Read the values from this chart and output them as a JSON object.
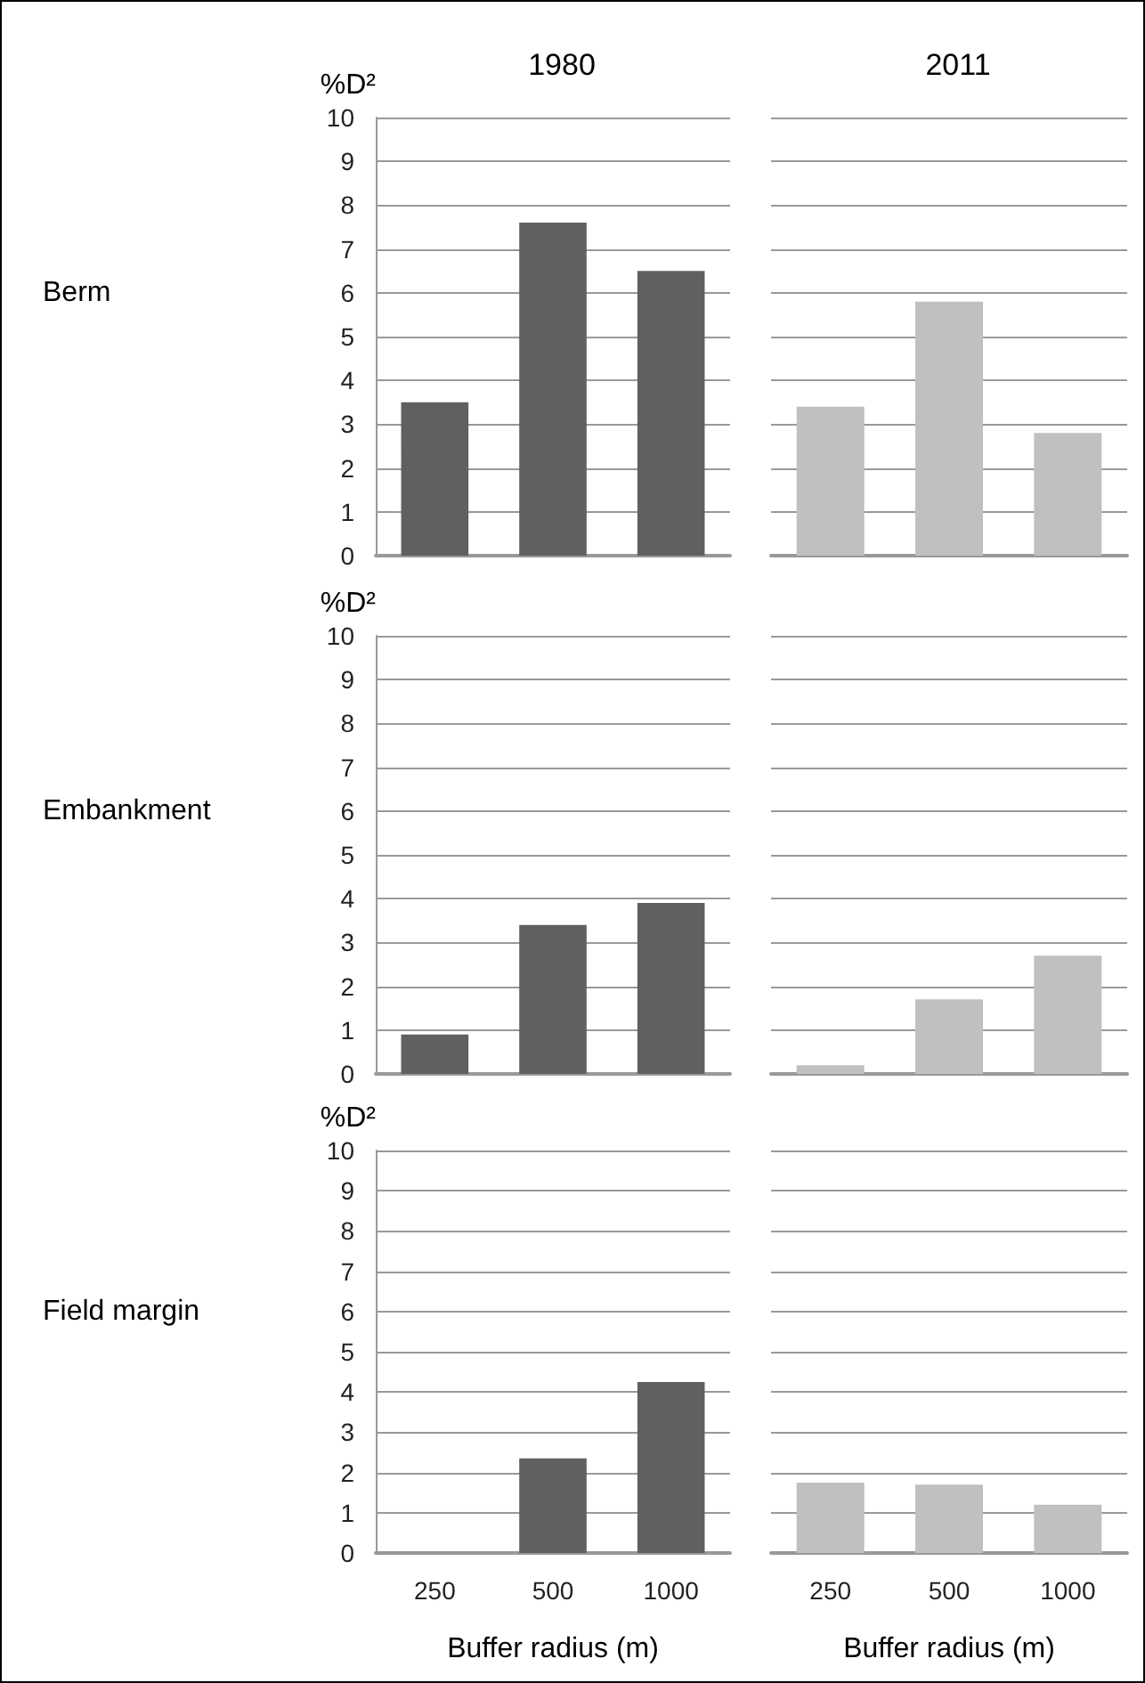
{
  "chart_data": [
    {
      "type": "bar",
      "title": "1980",
      "ylabel": "%D²",
      "annotations": [
        "Berm"
      ],
      "categories": [
        "250",
        "500",
        "1000"
      ],
      "values": [
        3.5,
        7.6,
        6.5
      ],
      "color": "#606060",
      "ylim": [
        0,
        10
      ],
      "yticks": [
        0,
        1,
        2,
        3,
        4,
        5,
        6,
        7,
        8,
        9,
        10
      ],
      "grid": "y",
      "tick_labels": "y"
    },
    {
      "type": "bar",
      "title": "2011",
      "categories": [
        "250",
        "500",
        "1000"
      ],
      "values": [
        3.4,
        5.8,
        2.8
      ],
      "color": "#c0c0c0",
      "ylim": [
        0,
        10
      ],
      "yticks": [
        0,
        1,
        2,
        3,
        4,
        5,
        6,
        7,
        8,
        9,
        10
      ],
      "grid": "y",
      "tick_labels": false
    },
    {
      "type": "bar",
      "ylabel": "%D²",
      "annotations": [
        "Embankment"
      ],
      "categories": [
        "250",
        "500",
        "1000"
      ],
      "values": [
        0.9,
        3.4,
        3.9
      ],
      "color": "#606060",
      "ylim": [
        0,
        10
      ],
      "yticks": [
        0,
        1,
        2,
        3,
        4,
        5,
        6,
        7,
        8,
        9,
        10
      ],
      "grid": "y",
      "tick_labels": "y"
    },
    {
      "type": "bar",
      "categories": [
        "250",
        "500",
        "1000"
      ],
      "values": [
        0.2,
        1.7,
        2.7
      ],
      "color": "#c0c0c0",
      "ylim": [
        0,
        10
      ],
      "yticks": [
        0,
        1,
        2,
        3,
        4,
        5,
        6,
        7,
        8,
        9,
        10
      ],
      "grid": "y",
      "tick_labels": false
    },
    {
      "type": "bar",
      "ylabel": "%D²",
      "xlabel": "Buffer radius (m)",
      "annotations": [
        "Field margin"
      ],
      "categories": [
        "250",
        "500",
        "1000"
      ],
      "values": [
        0,
        2.35,
        4.25
      ],
      "color": "#606060",
      "ylim": [
        0,
        10
      ],
      "yticks": [
        0,
        1,
        2,
        3,
        4,
        5,
        6,
        7,
        8,
        9,
        10
      ],
      "grid": "y"
    },
    {
      "type": "bar",
      "xlabel": "Buffer radius (m)",
      "categories": [
        "250",
        "500",
        "1000"
      ],
      "values": [
        1.75,
        1.7,
        1.2
      ],
      "color": "#c0c0c0",
      "ylim": [
        0,
        10
      ],
      "yticks": [
        0,
        1,
        2,
        3,
        4,
        5,
        6,
        7,
        8,
        9,
        10
      ],
      "grid": "y",
      "tick_labels": "x"
    }
  ]
}
